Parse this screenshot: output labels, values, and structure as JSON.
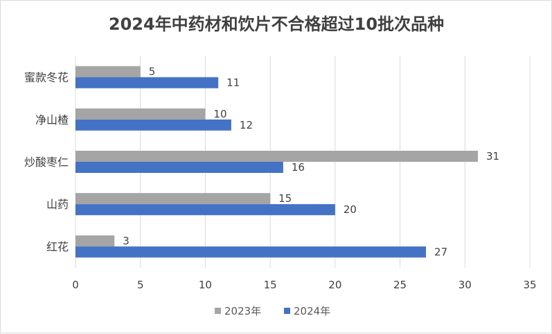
{
  "chart_data": {
    "type": "bar",
    "orientation": "horizontal",
    "title": "2024年中药材和饮片不合格超过10批次品种",
    "categories": [
      "蜜款冬花",
      "净山楂",
      "炒酸枣仁",
      "山药",
      "红花"
    ],
    "series": [
      {
        "name": "2023年",
        "color": "#a5a5a5",
        "values": [
          5,
          10,
          31,
          15,
          3
        ]
      },
      {
        "name": "2024年",
        "color": "#4472c4",
        "values": [
          11,
          12,
          16,
          20,
          27
        ]
      }
    ],
    "xlim": [
      0,
      35
    ],
    "xticks": [
      0,
      5,
      10,
      15,
      20,
      25,
      30,
      35
    ],
    "xlabel": "",
    "ylabel": "",
    "grid": "vertical",
    "legend": "bottom",
    "data_labels": true
  }
}
